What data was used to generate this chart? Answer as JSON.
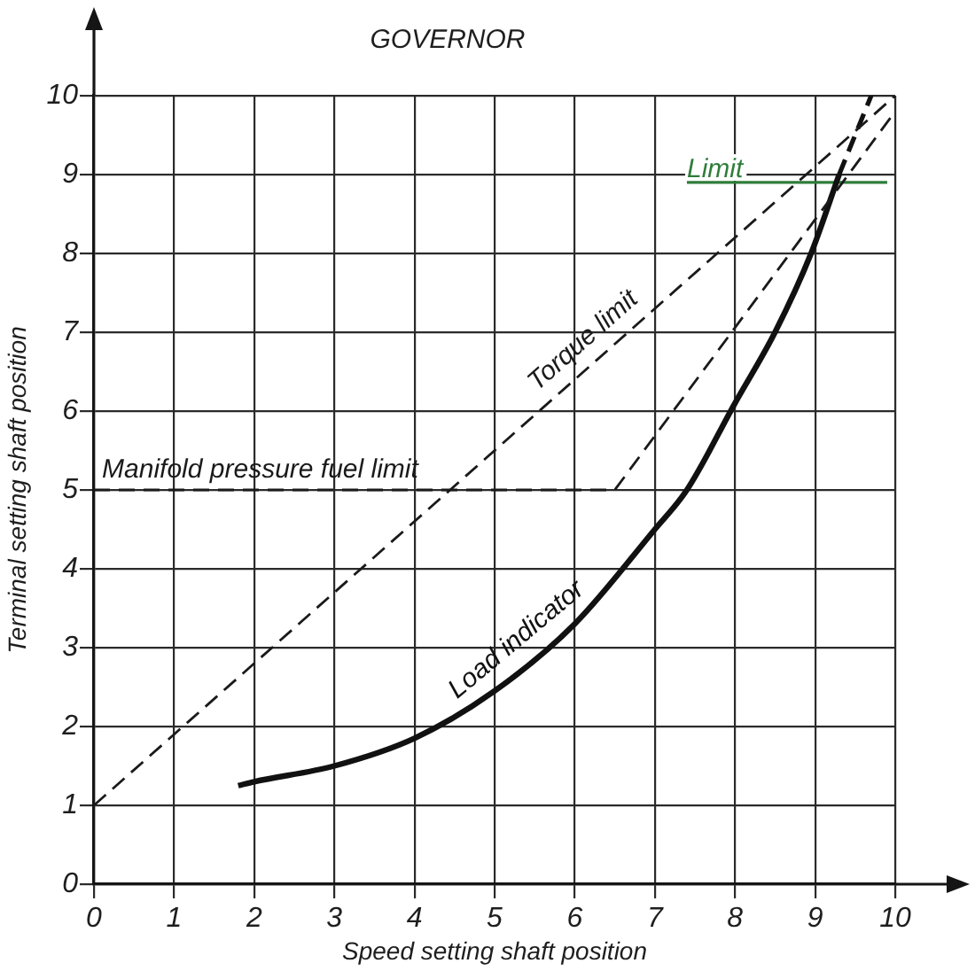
{
  "chart_data": {
    "type": "line",
    "title": "GOVERNOR",
    "xlabel": "Speed setting shaft position",
    "ylabel": "Terminal setting shaft position",
    "xlim": [
      0,
      10
    ],
    "ylim": [
      0,
      10
    ],
    "xticks": [
      0,
      1,
      2,
      3,
      4,
      5,
      6,
      7,
      8,
      9,
      10
    ],
    "yticks": [
      0,
      1,
      2,
      3,
      4,
      5,
      6,
      7,
      8,
      9,
      10
    ],
    "grid": true,
    "series": [
      {
        "name": "Torque limit",
        "color": "#1a1a1a",
        "x": [
          0,
          10
        ],
        "values": [
          1,
          10
        ],
        "line_style": "dashed"
      },
      {
        "name": "Manifold pressure fuel limit",
        "color": "#1a1a1a",
        "x": [
          0,
          6.5,
          10
        ],
        "values": [
          5,
          5,
          9.8
        ],
        "line_style": "dashed"
      },
      {
        "name": "Load indicator",
        "color": "#111111",
        "x": [
          1.8,
          2,
          3,
          4,
          5,
          6,
          7,
          7.4,
          8,
          8.5,
          8.95,
          9.3
        ],
        "values": [
          1.25,
          1.3,
          1.5,
          1.85,
          2.45,
          3.3,
          4.5,
          5,
          6.1,
          7,
          8,
          9
        ],
        "line_style": "solid"
      },
      {
        "color": "#111111",
        "x": [
          9.3,
          9.7
        ],
        "values": [
          9,
          10
        ],
        "line_style": "dashed"
      },
      {
        "name": "Limit",
        "color": "#2e7d3a",
        "x": [
          7.4,
          9.9
        ],
        "values": [
          8.9,
          8.9
        ],
        "line_style": "solid"
      }
    ]
  }
}
